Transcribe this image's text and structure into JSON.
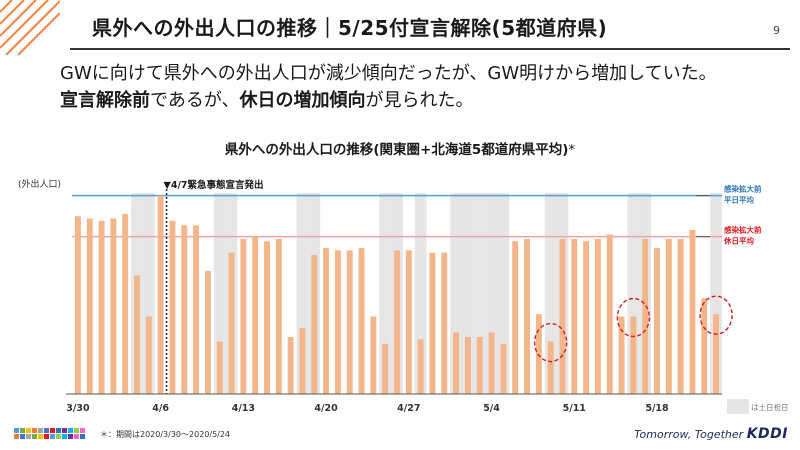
{
  "header": {
    "title": "県外への外出人口の推移｜5/25付宣言解除(5都道府県)",
    "page_number": "9"
  },
  "lead": {
    "line1": "GWに向けて県外への外出人口が減少傾向だったが、GW明けから増加していた。",
    "line2_bold1": "宣言解除前",
    "line2_text1": "であるが、",
    "line2_bold2": "休日の増加傾向",
    "line2_text2": "が見られた。"
  },
  "footnote": "＊：期間は2020/3/30～2020/5/24",
  "footer": {
    "tagline": "Tomorrow, Together",
    "logo": "KDDI"
  },
  "colors": {
    "bar": "#f2b68a",
    "weekday_line": "#5b9bd5",
    "holiday_line": "#f1a3a3",
    "weekday_text": "#2e75b6",
    "holiday_text": "#e0141e",
    "shade": "#e6e6e6",
    "circle": "#d11d1d"
  },
  "chart_data": {
    "type": "bar",
    "title": "県外への外出人口の推移(関東圏+北海道5都道府県平均)",
    "title_mark": "*",
    "ylabel": "(外出人口)",
    "ylim": [
      0,
      100
    ],
    "x_tick_labels": [
      "3/30",
      "4/6",
      "4/13",
      "4/20",
      "4/27",
      "5/4",
      "5/11",
      "5/18"
    ],
    "x_tick_indices": [
      0,
      7,
      14,
      21,
      28,
      35,
      42,
      49
    ],
    "values": [
      78,
      77,
      76,
      77,
      79,
      52,
      34,
      87,
      76,
      74,
      74,
      54,
      23,
      62,
      68,
      69,
      67,
      68,
      25,
      29,
      61,
      64,
      63,
      63,
      64,
      34,
      22,
      63,
      63,
      24,
      62,
      62,
      27,
      25,
      25,
      27,
      22,
      67,
      68,
      35,
      23,
      68,
      68,
      67,
      68,
      70,
      34,
      34,
      68,
      64,
      68,
      68,
      72,
      42,
      35
    ],
    "shaded_day_indices": [
      5,
      6,
      12,
      13,
      19,
      20,
      26,
      27,
      29,
      32,
      33,
      34,
      35,
      36,
      40,
      41,
      47,
      48,
      54
    ],
    "highlight_day_indices": [
      40,
      47,
      54
    ],
    "event_day_index": 8,
    "event_label": "▼4/7緊急事態宣言発出",
    "reference_lines": [
      {
        "name": "weekday",
        "value": 87,
        "label_line1": "感染拡大前",
        "label_line2": "平日平均"
      },
      {
        "name": "holiday",
        "value": 69,
        "label_line1": "感染拡大前",
        "label_line2": "休日平均"
      }
    ],
    "legend_label": "は土日祝日"
  }
}
